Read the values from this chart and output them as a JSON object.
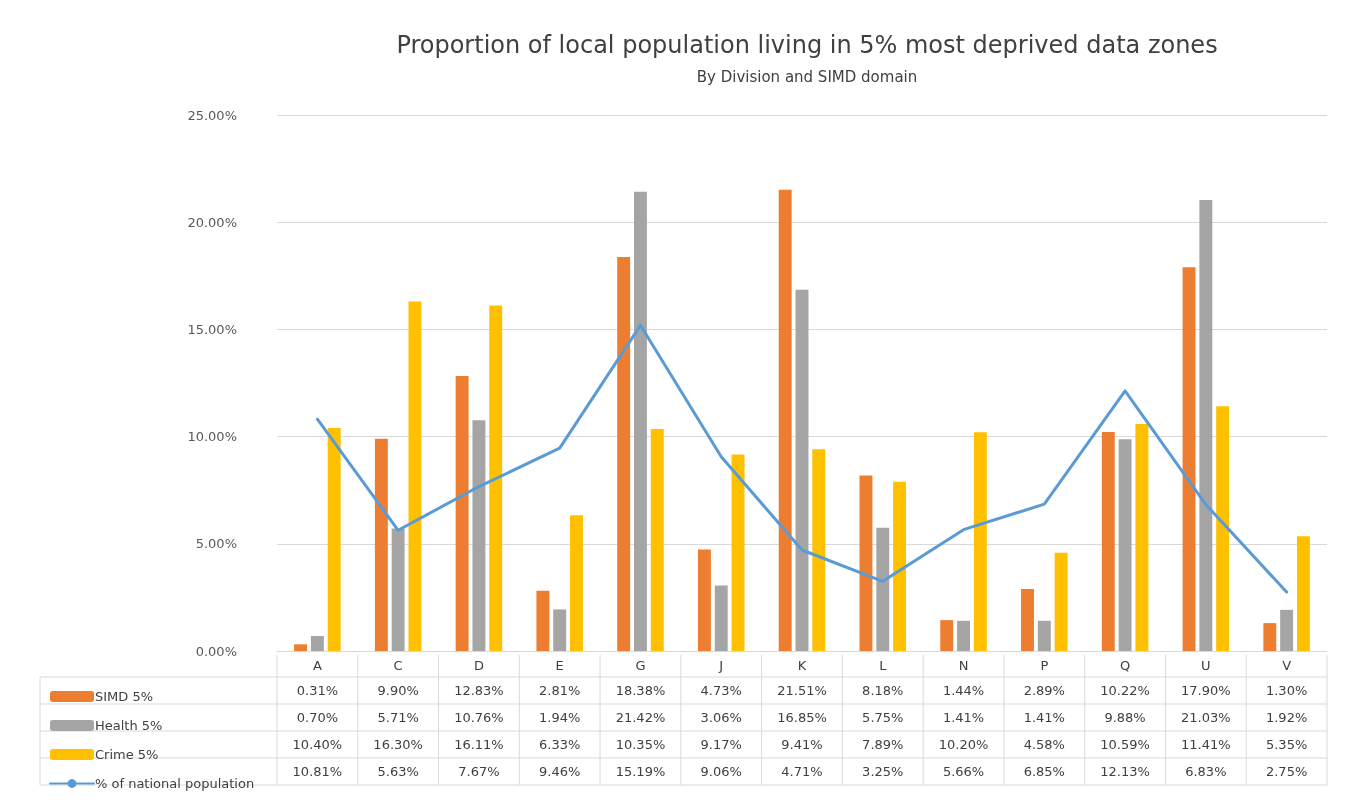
{
  "chart_data": {
    "type": "bar",
    "title": "Proportion of local population living in 5% most deprived data zones",
    "subtitle": "By Division and SIMD domain",
    "categories": [
      "A",
      "C",
      "D",
      "E",
      "G",
      "J",
      "K",
      "L",
      "N",
      "P",
      "Q",
      "U",
      "V"
    ],
    "series": [
      {
        "name": "SIMD 5%",
        "color": "#ed7d31",
        "values": [
          0.31,
          9.9,
          12.83,
          2.81,
          18.38,
          4.73,
          21.51,
          8.18,
          1.44,
          2.89,
          10.22,
          17.9,
          1.3
        ],
        "value_labels": [
          "0.31%",
          "9.90%",
          "12.83%",
          "2.81%",
          "18.38%",
          "4.73%",
          "21.51%",
          "8.18%",
          "1.44%",
          "2.89%",
          "10.22%",
          "17.90%",
          "1.30%"
        ]
      },
      {
        "name": "Health 5%",
        "color": "#a5a5a5",
        "values": [
          0.7,
          5.71,
          10.76,
          1.94,
          21.42,
          3.06,
          16.85,
          5.75,
          1.41,
          1.41,
          9.88,
          21.03,
          1.92
        ],
        "value_labels": [
          "0.70%",
          "5.71%",
          "10.76%",
          "1.94%",
          "21.42%",
          "3.06%",
          "16.85%",
          "5.75%",
          "1.41%",
          "1.41%",
          "9.88%",
          "21.03%",
          "1.92%"
        ]
      },
      {
        "name": "Crime 5%",
        "color": "#ffc000",
        "values": [
          10.4,
          16.3,
          16.11,
          6.33,
          10.35,
          9.17,
          9.41,
          7.89,
          10.2,
          4.58,
          10.59,
          11.41,
          5.35
        ],
        "value_labels": [
          "10.40%",
          "16.30%",
          "16.11%",
          "6.33%",
          "10.35%",
          "9.17%",
          "9.41%",
          "7.89%",
          "10.20%",
          "4.58%",
          "10.59%",
          "11.41%",
          "5.35%"
        ]
      },
      {
        "name": "% of national population",
        "type": "line",
        "color": "#5b9bd5",
        "marker": "none",
        "values": [
          10.81,
          5.63,
          7.67,
          9.46,
          15.19,
          9.06,
          4.71,
          3.25,
          5.66,
          6.85,
          12.13,
          6.83,
          2.75
        ],
        "value_labels": [
          "10.81%",
          "5.63%",
          "7.67%",
          "9.46%",
          "15.19%",
          "9.06%",
          "4.71%",
          "3.25%",
          "5.66%",
          "6.85%",
          "12.13%",
          "6.83%",
          "2.75%"
        ]
      }
    ],
    "ylim": [
      0,
      25
    ],
    "yticks": [
      {
        "value": 0,
        "label": "0.00%"
      },
      {
        "value": 5,
        "label": "5.00%"
      },
      {
        "value": 10,
        "label": "10.00%"
      },
      {
        "value": 15,
        "label": "15.00%"
      },
      {
        "value": 20,
        "label": "20.00%"
      },
      {
        "value": 25,
        "label": "25.00%"
      }
    ],
    "grid": "y",
    "legend": "bottom left"
  }
}
